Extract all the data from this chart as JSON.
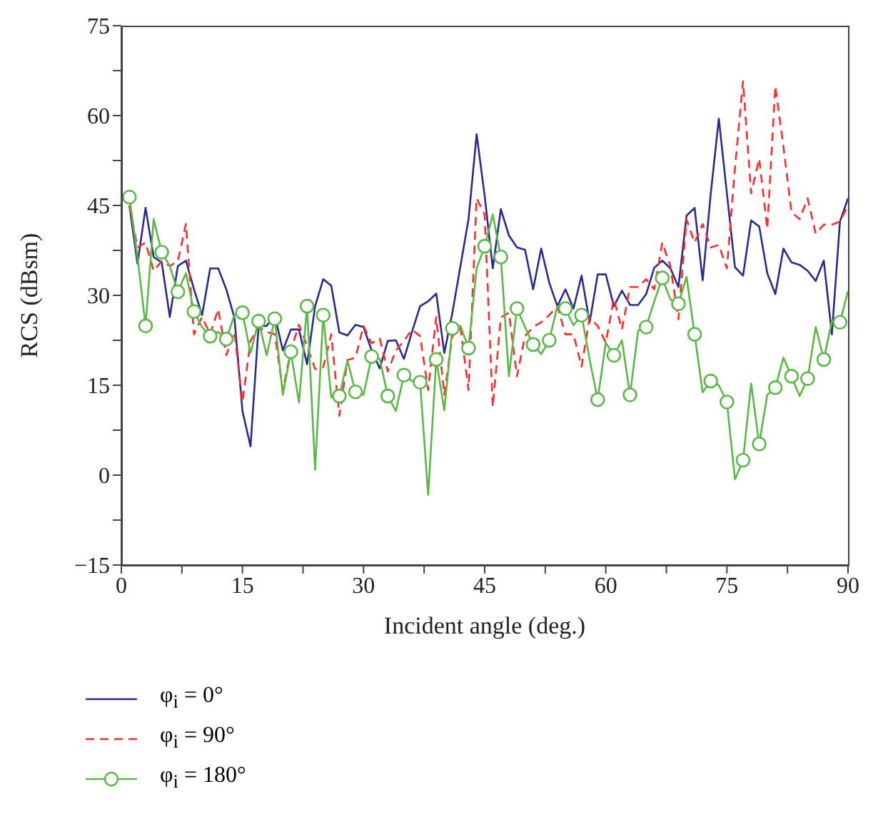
{
  "chart_data": {
    "type": "line",
    "xlabel": "Incident angle (deg.)",
    "ylabel": "RCS (dBsm)",
    "x": [
      1,
      2,
      3,
      4,
      5,
      6,
      7,
      8,
      9,
      10,
      11,
      12,
      13,
      14,
      15,
      16,
      17,
      18,
      19,
      20,
      21,
      22,
      23,
      24,
      25,
      26,
      27,
      28,
      29,
      30,
      31,
      32,
      33,
      34,
      35,
      36,
      37,
      38,
      39,
      40,
      41,
      42,
      43,
      44,
      45,
      46,
      47,
      48,
      49,
      50,
      51,
      52,
      53,
      54,
      55,
      56,
      57,
      58,
      59,
      60,
      61,
      62,
      63,
      64,
      65,
      66,
      67,
      68,
      69,
      70,
      71,
      72,
      73,
      74,
      75,
      76,
      77,
      78,
      79,
      80,
      81,
      82,
      83,
      84,
      85,
      86,
      87,
      88,
      89,
      90
    ],
    "series": [
      {
        "name": "φ$_{i}$ = 0°",
        "color": "#2b2b8f",
        "line_style": "solid",
        "marker": "none",
        "values": [
          45,
          35.3,
          44.6,
          36.4,
          35.5,
          26.4,
          34.9,
          35.8,
          31,
          26.7,
          34.5,
          34.5,
          31,
          26.3,
          10.7,
          4.8,
          24.9,
          24.9,
          26.7,
          20.8,
          24.3,
          24.3,
          18.5,
          28.2,
          32.7,
          31.6,
          23.8,
          23.3,
          25.1,
          24.7,
          20.8,
          17.8,
          22.4,
          22.5,
          19.4,
          23.9,
          28.2,
          29,
          30.3,
          20.4,
          27.1,
          34.9,
          42.7,
          56.9,
          46.6,
          34.5,
          44.4,
          40,
          38,
          37.6,
          31,
          37.8,
          32.1,
          28.2,
          31,
          27.8,
          33.3,
          25.5,
          33.5,
          33.5,
          28.2,
          30.8,
          28.4,
          28.4,
          30.2,
          34.6,
          35.8,
          34.5,
          31.4,
          43.3,
          44.6,
          32.5,
          47,
          59.5,
          47,
          34.7,
          33.3,
          42.5,
          41.5,
          33.7,
          30.2,
          37.8,
          35.5,
          35.1,
          34.1,
          32.4,
          35.8,
          23.5,
          42.3,
          46.2
        ]
      },
      {
        "name": "φ$_{i}$ = 90°",
        "color": "#ff2a2a",
        "line_style": "dashed",
        "marker": "none",
        "values": [
          45,
          38,
          38.8,
          34.1,
          35.7,
          34.9,
          35.7,
          41.9,
          23.5,
          26.4,
          23.5,
          27.7,
          20,
          23.9,
          12.2,
          22.4,
          24.7,
          23.9,
          23.5,
          14.2,
          20.8,
          25.1,
          21.6,
          17.7,
          18,
          23.5,
          9.9,
          19.2,
          19.6,
          24.9,
          22,
          22.8,
          17.3,
          20.8,
          22.4,
          24.3,
          23.2,
          14.2,
          26.4,
          13.4,
          23.2,
          24.7,
          14.2,
          46.2,
          43.5,
          11.4,
          26.3,
          27.1,
          16.5,
          23.2,
          24.7,
          25.5,
          26.7,
          28.2,
          23.5,
          23.5,
          18.1,
          26.3,
          24.9,
          22.1,
          29.4,
          24.3,
          31.4,
          31.4,
          32.7,
          31,
          38.8,
          34.9,
          26,
          42.7,
          38.8,
          41.9,
          38,
          38.4,
          34.5,
          51.3,
          65.7,
          47,
          52.8,
          41.1,
          64.9,
          54.8,
          43.9,
          42.7,
          46.2,
          40.3,
          41.8,
          41.8,
          42.3,
          45
        ]
      },
      {
        "name": "φ$_{i}$ = 180°",
        "color": "#5ab946",
        "line_style": "solid",
        "marker": "circle",
        "values": [
          46.4,
          36.4,
          24.9,
          42.7,
          37.2,
          34.9,
          30.6,
          33.7,
          27.3,
          24.7,
          23.2,
          23.9,
          22.7,
          26.7,
          27.1,
          20.4,
          25.7,
          20,
          26.1,
          13.4,
          20.6,
          12.1,
          28.2,
          0.9,
          26.7,
          13,
          13.2,
          19.1,
          13.9,
          13.4,
          19.8,
          19.4,
          13.2,
          10.7,
          16.7,
          15.7,
          15.5,
          -3.3,
          19.3,
          10.8,
          24.5,
          24.9,
          21.2,
          34.5,
          38.2,
          43.5,
          36.4,
          16.5,
          27.8,
          24.7,
          21.8,
          20.2,
          22.5,
          28.2,
          27.8,
          25,
          26.7,
          19.3,
          12.6,
          22.1,
          20,
          22.5,
          13.4,
          24.1,
          24.7,
          29,
          32.9,
          29.3,
          28.6,
          33.1,
          23.5,
          13.8,
          15.7,
          15,
          12.2,
          -0.7,
          2.5,
          15.3,
          5.2,
          13.4,
          14.6,
          19.6,
          16.5,
          13.2,
          16.1,
          24.7,
          19.3,
          25.7,
          25.5,
          30.7
        ]
      }
    ],
    "xlim": [
      0,
      90
    ],
    "xticks": [
      0,
      {
        "value": 7.5,
        "label": null
      },
      15,
      {
        "value": 22.5,
        "label": null
      },
      30,
      {
        "value": 37.5,
        "label": null
      },
      45,
      {
        "value": 52.5,
        "label": null
      },
      60,
      {
        "value": 67.5,
        "label": null
      },
      75,
      {
        "value": 82.5,
        "label": null
      },
      90
    ],
    "ylim": [
      -15,
      75
    ],
    "yticks": [
      {
        "value": -15,
        "label": "−15"
      },
      {
        "value": -7.5,
        "label": null
      },
      0,
      {
        "value": 7.5,
        "label": null
      },
      15,
      {
        "value": 22.5,
        "label": null
      },
      30,
      {
        "value": 37.5,
        "label": null
      },
      45,
      {
        "value": 52.5,
        "label": null
      },
      60,
      {
        "value": 67.5,
        "label": null
      },
      75
    ],
    "grid": false,
    "legend": "bottom left"
  }
}
